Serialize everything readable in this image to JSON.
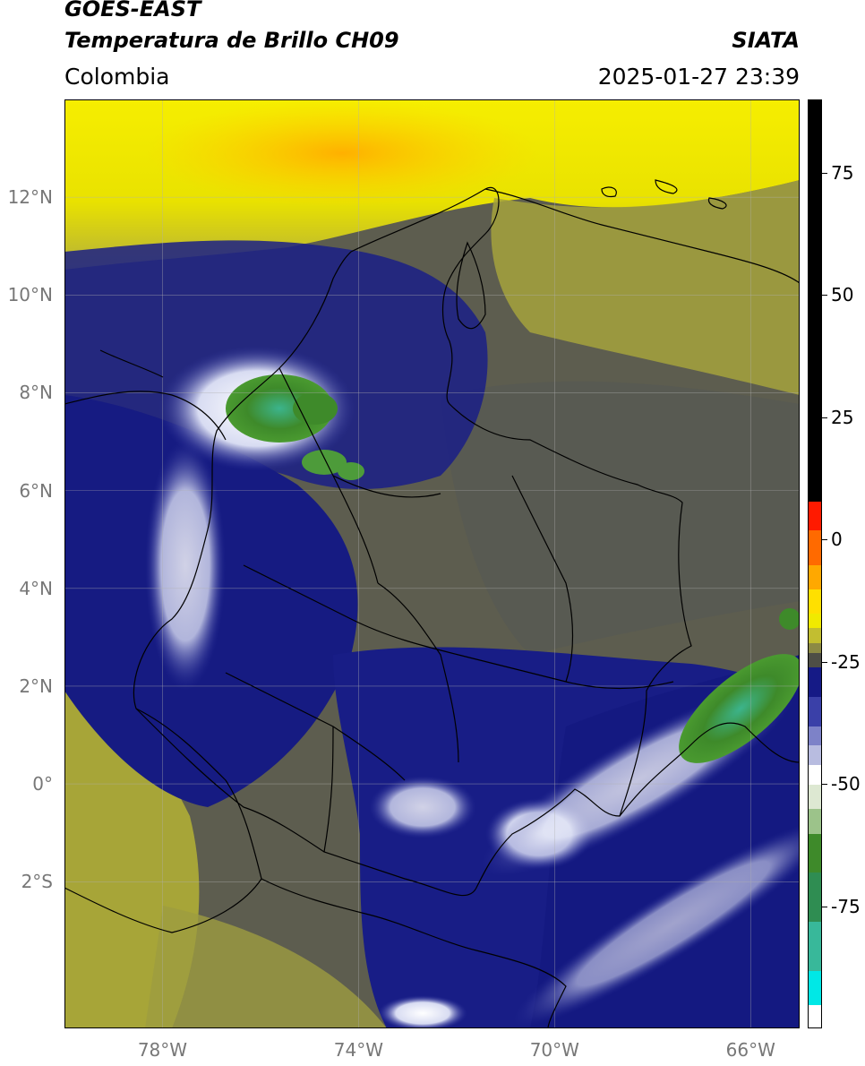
{
  "header": {
    "satellite": "GOES-EAST",
    "product": "Temperatura de Brillo CH09",
    "region": "Colombia",
    "agency": "SIATA",
    "datetime": "2025-01-27 23:39"
  },
  "map": {
    "lon_range": [
      -80,
      -65
    ],
    "lat_range": [
      -5,
      14
    ],
    "lat_ticks": [
      {
        "value": 12,
        "label": "12°N"
      },
      {
        "value": 10,
        "label": "10°N"
      },
      {
        "value": 8,
        "label": "8°N"
      },
      {
        "value": 6,
        "label": "6°N"
      },
      {
        "value": 4,
        "label": "4°N"
      },
      {
        "value": 2,
        "label": "2°N"
      },
      {
        "value": 0,
        "label": "0°"
      },
      {
        "value": -2,
        "label": "2°S"
      }
    ],
    "lon_ticks": [
      {
        "value": -78,
        "label": "78°W"
      },
      {
        "value": -74,
        "label": "74°W"
      },
      {
        "value": -70,
        "label": "70°W"
      },
      {
        "value": -66,
        "label": "66°W"
      }
    ],
    "grid": true,
    "colors": {
      "warm_yellow": "#f5ee00",
      "orange": "#ffb800",
      "olive": "#a9a636",
      "gray_olive": "#5c5c4e",
      "navy": "#14187f",
      "white": "#f4f4f4",
      "green": "#3e8a2a",
      "teal": "#3cb48c"
    }
  },
  "colorbar": {
    "range": [
      -100,
      90
    ],
    "ticks": [
      {
        "value": 75,
        "label": "75"
      },
      {
        "value": 50,
        "label": "50"
      },
      {
        "value": 25,
        "label": "25"
      },
      {
        "value": 0,
        "label": "0"
      },
      {
        "value": -25,
        "label": "-25"
      },
      {
        "value": -50,
        "label": "-50"
      },
      {
        "value": -75,
        "label": "-75"
      }
    ]
  }
}
